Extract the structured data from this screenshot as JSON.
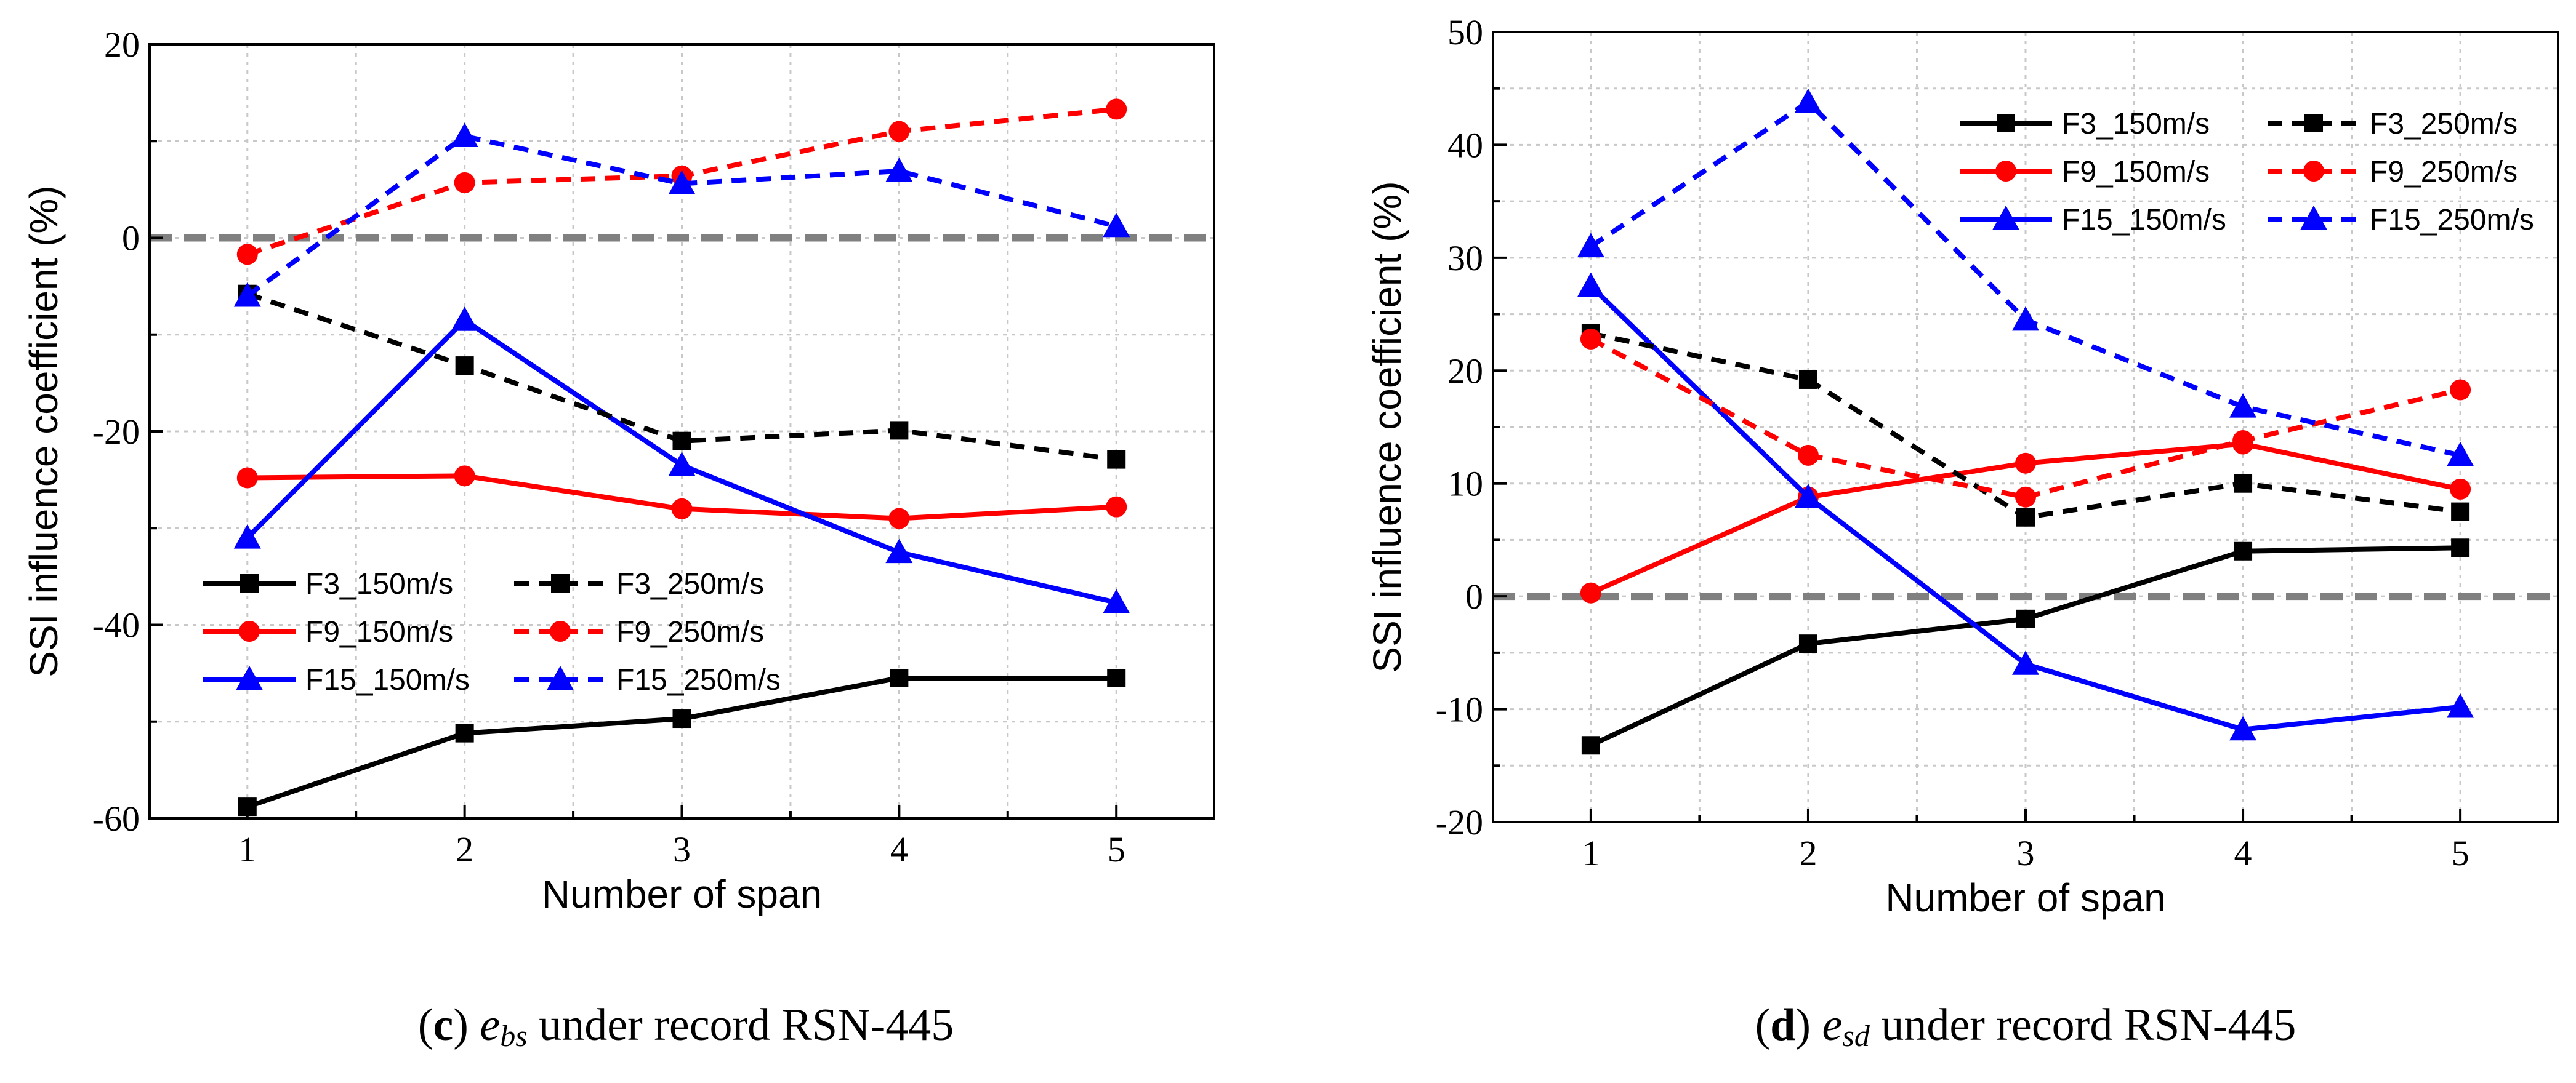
{
  "chart_data": [
    {
      "type": "line",
      "caption": {
        "letter": "c",
        "var_main": "e",
        "var_sub": "bs",
        "rest": " under record RSN-445"
      },
      "xlabel": "Number of span",
      "ylabel": "SSI influence coefficient (%)",
      "x": [
        1,
        2,
        3,
        4,
        5
      ],
      "xlim": [
        0.55,
        5.45
      ],
      "ylim": [
        -60,
        20
      ],
      "yticks": [
        -60,
        -40,
        -20,
        0,
        20
      ],
      "yminor": 10,
      "reference_line": 0,
      "legend_position": "lower-left",
      "series": [
        {
          "name": "F3_150m/s",
          "color": "#000000",
          "dash": "solid",
          "marker": "square",
          "values": [
            -58.8,
            -51.2,
            -49.7,
            -45.5,
            -45.5
          ]
        },
        {
          "name": "F9_150m/s",
          "color": "#ff0000",
          "dash": "solid",
          "marker": "circle",
          "values": [
            -24.8,
            -24.6,
            -28.0,
            -29.0,
            -27.8
          ]
        },
        {
          "name": "F15_150m/s",
          "color": "#0000ff",
          "dash": "solid",
          "marker": "triangle",
          "values": [
            -31.0,
            -8.5,
            -23.5,
            -32.5,
            -37.7
          ]
        },
        {
          "name": "F3_250m/s",
          "color": "#000000",
          "dash": "dashed",
          "marker": "square",
          "values": [
            -5.8,
            -13.2,
            -21.0,
            -19.9,
            -22.9
          ]
        },
        {
          "name": "F9_250m/s",
          "color": "#ff0000",
          "dash": "dashed",
          "marker": "circle",
          "values": [
            -1.7,
            5.7,
            6.4,
            11.0,
            13.3
          ]
        },
        {
          "name": "F15_250m/s",
          "color": "#0000ff",
          "dash": "dashed",
          "marker": "triangle",
          "values": [
            -6.0,
            10.5,
            5.6,
            6.9,
            1.2
          ]
        }
      ]
    },
    {
      "type": "line",
      "caption": {
        "letter": "d",
        "var_main": "e",
        "var_sub": "sd",
        "rest": " under record RSN-445"
      },
      "xlabel": "Number of span",
      "ylabel": "SSI influence coefficient (%)",
      "x": [
        1,
        2,
        3,
        4,
        5
      ],
      "xlim": [
        0.55,
        5.45
      ],
      "ylim": [
        -20,
        50
      ],
      "yticks": [
        -20,
        -10,
        0,
        10,
        20,
        30,
        40,
        50
      ],
      "yminor": 5,
      "reference_line": 0,
      "legend_position": "top-right",
      "series": [
        {
          "name": "F3_150m/s",
          "color": "#000000",
          "dash": "solid",
          "marker": "square",
          "values": [
            -13.2,
            -4.2,
            -2.0,
            4.0,
            4.3
          ]
        },
        {
          "name": "F9_150m/s",
          "color": "#ff0000",
          "dash": "solid",
          "marker": "circle",
          "values": [
            0.3,
            8.8,
            11.8,
            13.5,
            9.5
          ]
        },
        {
          "name": "F15_150m/s",
          "color": "#0000ff",
          "dash": "solid",
          "marker": "triangle",
          "values": [
            27.5,
            8.8,
            -6.0,
            -11.8,
            -9.8
          ]
        },
        {
          "name": "F3_250m/s",
          "color": "#000000",
          "dash": "dashed",
          "marker": "square",
          "values": [
            23.3,
            19.2,
            7.0,
            10.0,
            7.5
          ]
        },
        {
          "name": "F9_250m/s",
          "color": "#ff0000",
          "dash": "dashed",
          "marker": "circle",
          "values": [
            22.8,
            12.5,
            8.8,
            13.8,
            18.3
          ]
        },
        {
          "name": "F15_250m/s",
          "color": "#0000ff",
          "dash": "dashed",
          "marker": "triangle",
          "values": [
            31.0,
            43.8,
            24.5,
            16.8,
            12.5
          ]
        }
      ]
    }
  ]
}
